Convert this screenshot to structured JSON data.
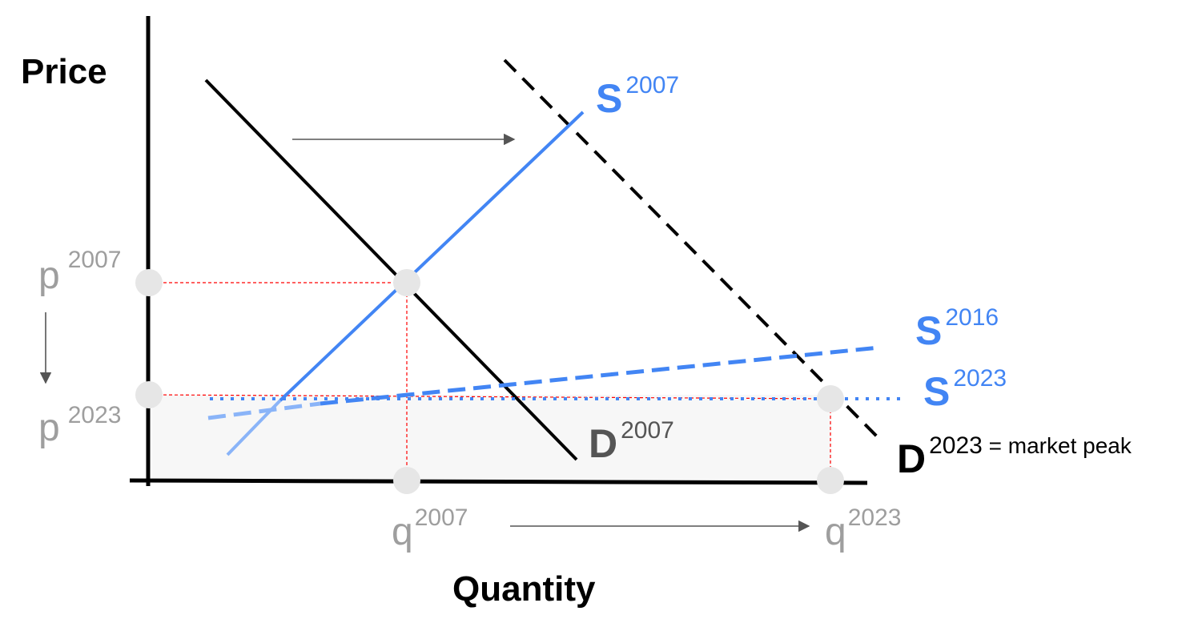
{
  "axes": {
    "y_title": "Price",
    "x_title": "Quantity"
  },
  "curves": {
    "s2007": {
      "base": "S",
      "sup": "2007"
    },
    "s2016": {
      "base": "S",
      "sup": "2016"
    },
    "s2023": {
      "base": "S",
      "sup": "2023"
    },
    "d2007": {
      "base": "D",
      "sup": "2007"
    },
    "d2023": {
      "base": "D",
      "sup": "2023",
      "suffix": " = market peak"
    }
  },
  "price_labels": {
    "p2007": {
      "base": "p",
      "sup": "2007"
    },
    "p2023": {
      "base": "p",
      "sup": "2023"
    }
  },
  "quantity_labels": {
    "q2007": {
      "base": "q",
      "sup": "2007"
    },
    "q2023": {
      "base": "q",
      "sup": "2023"
    }
  },
  "colors": {
    "supply": "#4285f4",
    "supply_light": "#8ab4f8",
    "demand": "#000000",
    "demand_2007_label": "#555555",
    "guide": "#ff0000",
    "point": "#e6e6e6",
    "muted_text": "#9e9e9e",
    "arrow": "#555555",
    "shade": "#f7f7f7"
  }
}
